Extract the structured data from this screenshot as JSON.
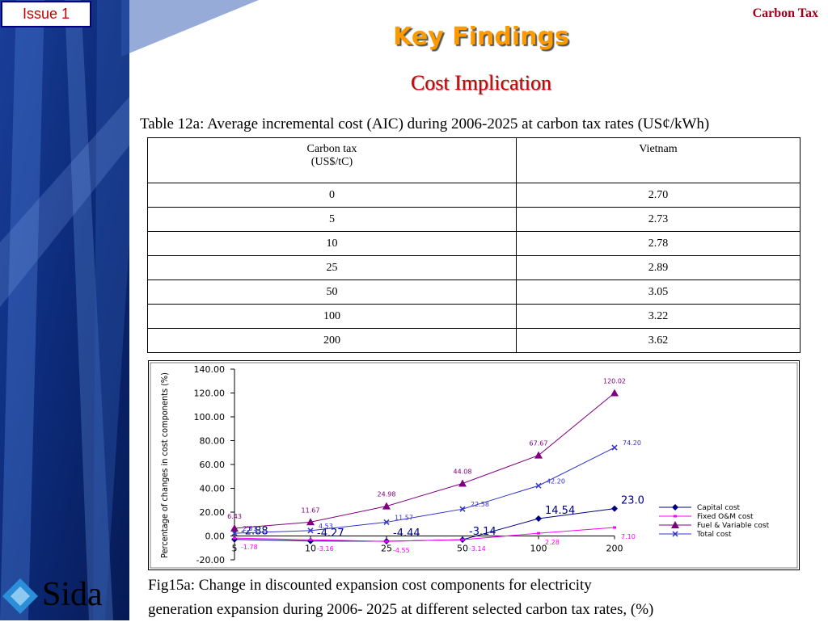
{
  "header": {
    "tag": "Issue 1",
    "topic": "Carbon Tax",
    "title": "Key Findings",
    "subtitle": "Cost Implication"
  },
  "table": {
    "caption": "Table 12a: Average incremental cost (AIC) during 2006-2025 at carbon tax rates (US¢/kWh)",
    "columns": [
      {
        "lines": [
          "Carbon tax",
          "(US$/tC)"
        ]
      },
      {
        "lines": [
          "Vietnam"
        ]
      }
    ],
    "rows": [
      [
        "0",
        "2.70"
      ],
      [
        "5",
        "2.73"
      ],
      [
        "10",
        "2.78"
      ],
      [
        "25",
        "2.89"
      ],
      [
        "50",
        "3.05"
      ],
      [
        "100",
        "3.22"
      ],
      [
        "200",
        "3.62"
      ]
    ]
  },
  "chart_data": {
    "type": "line",
    "y_label": "Percentage of changes in cost components (%)",
    "categories": [
      "5",
      "10",
      "25",
      "50",
      "100",
      "200"
    ],
    "ylim": [
      -20,
      140
    ],
    "yticks": [
      {
        "value": -20,
        "label": "-20.00"
      },
      {
        "value": 0,
        "label": "0.00"
      },
      {
        "value": 20,
        "label": "20.00"
      },
      {
        "value": 40,
        "label": "40.00"
      },
      {
        "value": 60,
        "label": "60.00"
      },
      {
        "value": 80,
        "label": "80.00"
      },
      {
        "value": 100,
        "label": "100.00"
      },
      {
        "value": 120,
        "label": "120.00"
      },
      {
        "value": 140,
        "label": "140.00"
      }
    ],
    "series": [
      {
        "name": "Capital cost",
        "color": "#000080",
        "marker": "diamond",
        "values": [
          -2.88,
          -4.27,
          -4.44,
          -3.14,
          14.54,
          23.0
        ],
        "value_labels": [
          "-2.88",
          "-4.27",
          "-4.44",
          "-3.14",
          "14.54",
          "23.0"
        ]
      },
      {
        "name": "Fixed O&M cost",
        "color": "#ff00ff",
        "marker": "square",
        "values": [
          -1.78,
          -3.16,
          -4.55,
          -3.14,
          2.28,
          7.1
        ],
        "value_labels": [
          "-1.78",
          "-3.16",
          "-4.55",
          "-3.14",
          "2.28",
          "7.10"
        ]
      },
      {
        "name": "Fuel & Variable cost",
        "color": "#800080",
        "marker": "triangle",
        "values": [
          6.43,
          11.67,
          24.98,
          44.08,
          67.67,
          120.02
        ],
        "value_labels": [
          "6.43",
          "11.67",
          "24.98",
          "44.08",
          "67.67",
          "120.02"
        ]
      },
      {
        "name": "Total cost",
        "color": "#3333cc",
        "marker": "cross",
        "values": [
          2.31,
          4.53,
          11.57,
          22.58,
          42.2,
          74.2
        ],
        "value_labels": [
          "2.31",
          "4.53",
          "11.57",
          "22.58",
          "42.20",
          "74.20"
        ]
      }
    ]
  },
  "figure_caption": [
    "Fig15a: Change in discounted expansion cost components for electricity",
    "generation expansion during 2006- 2025 at different selected carbon tax rates, (%)"
  ],
  "logo": "Sida"
}
